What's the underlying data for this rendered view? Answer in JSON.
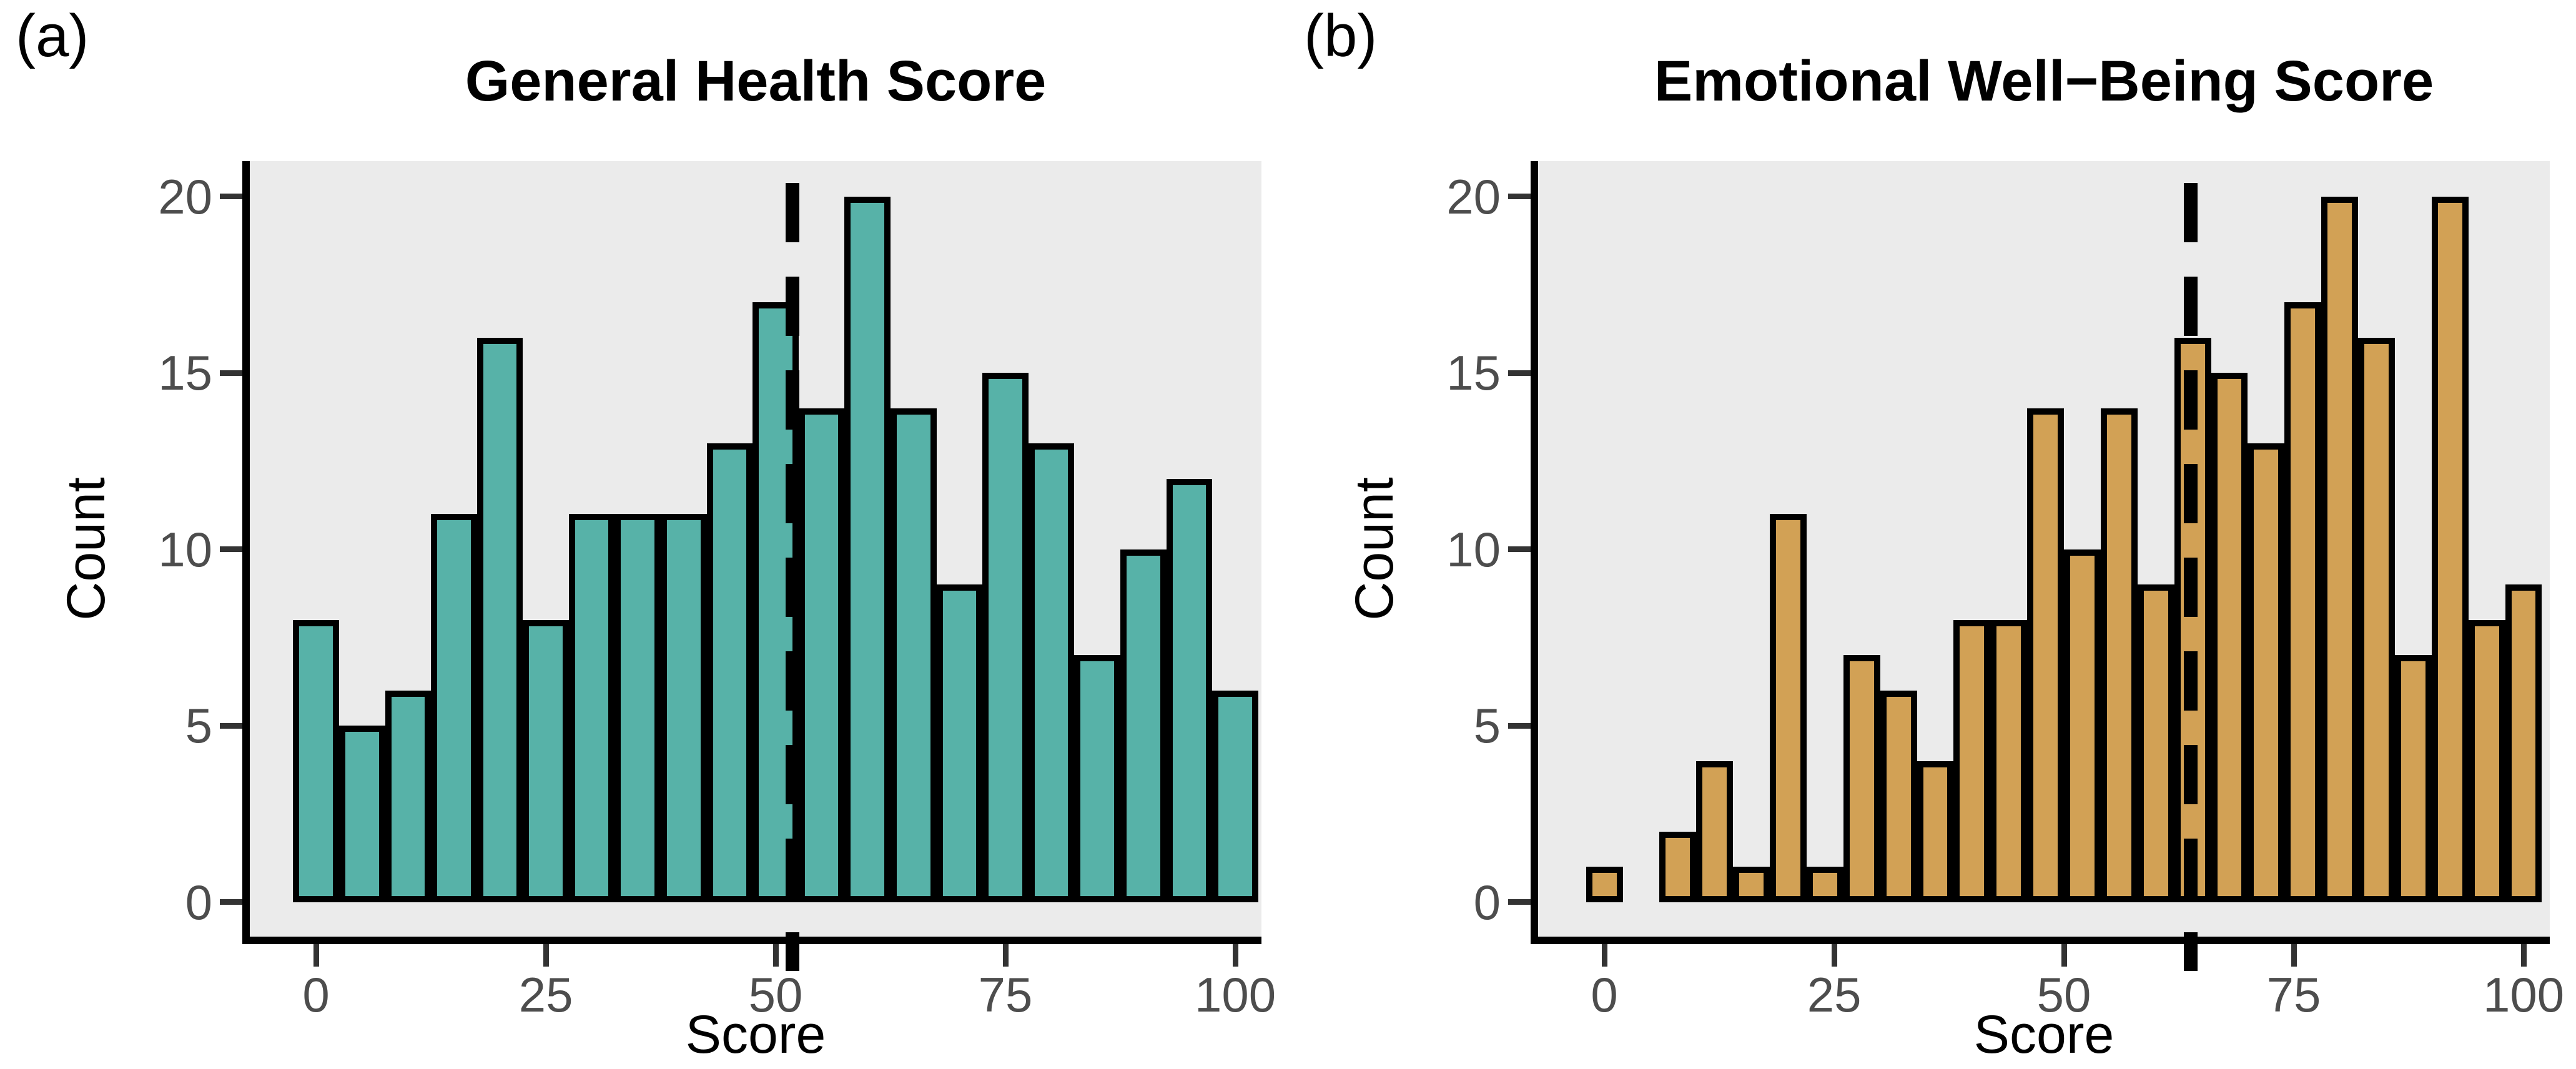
{
  "figure": {
    "background_color": "#FFFFFF",
    "panel_background_color": "#EBEBEB",
    "axis_line_color": "#000000",
    "tick_mark_color": "#333333",
    "tick_label_color": "#4D4D4D",
    "mean_line_color": "#000000",
    "mean_line_style": "dashed"
  },
  "chart_data": [
    {
      "type": "bar",
      "subtype": "histogram",
      "panel_label": "(a)",
      "title": "General Health Score",
      "xlabel": "Score",
      "ylabel": "Count",
      "bar_color": "#57B2A8",
      "bar_border_color": "#000000",
      "bin_width": 5,
      "bin_centers": [
        0,
        5,
        10,
        15,
        20,
        25,
        30,
        35,
        40,
        45,
        50,
        55,
        60,
        65,
        70,
        75,
        80,
        85,
        90,
        95,
        100
      ],
      "counts": [
        8,
        5,
        6,
        11,
        16,
        8,
        11,
        11,
        11,
        13,
        17,
        14,
        20,
        14,
        9,
        15,
        13,
        7,
        10,
        12,
        6
      ],
      "mean_line_x": 51.8,
      "x_ticks": [
        0,
        25,
        50,
        75,
        100
      ],
      "y_ticks": [
        0,
        5,
        10,
        15,
        20
      ],
      "ylim": [
        0,
        21
      ],
      "grid": false,
      "legend": false
    },
    {
      "type": "bar",
      "subtype": "histogram",
      "panel_label": "(b)",
      "title": "Emotional Well−Being Score",
      "xlabel": "Score",
      "ylabel": "Count",
      "bar_color": "#D2A155",
      "bar_border_color": "#000000",
      "bin_width": 4,
      "bin_centers": [
        0,
        4,
        8,
        12,
        16,
        20,
        24,
        28,
        32,
        36,
        40,
        44,
        48,
        52,
        56,
        60,
        64,
        68,
        72,
        76,
        80,
        84,
        88,
        92,
        96,
        100
      ],
      "counts": [
        1,
        0,
        2,
        4,
        1,
        11,
        1,
        7,
        6,
        4,
        8,
        8,
        14,
        10,
        14,
        9,
        16,
        15,
        13,
        17,
        20,
        16,
        7,
        20,
        8,
        9
      ],
      "mean_line_x": 63.8,
      "x_ticks": [
        0,
        25,
        50,
        75,
        100
      ],
      "y_ticks": [
        0,
        5,
        10,
        15,
        20
      ],
      "ylim": [
        0,
        21
      ],
      "grid": false,
      "legend": false
    }
  ]
}
